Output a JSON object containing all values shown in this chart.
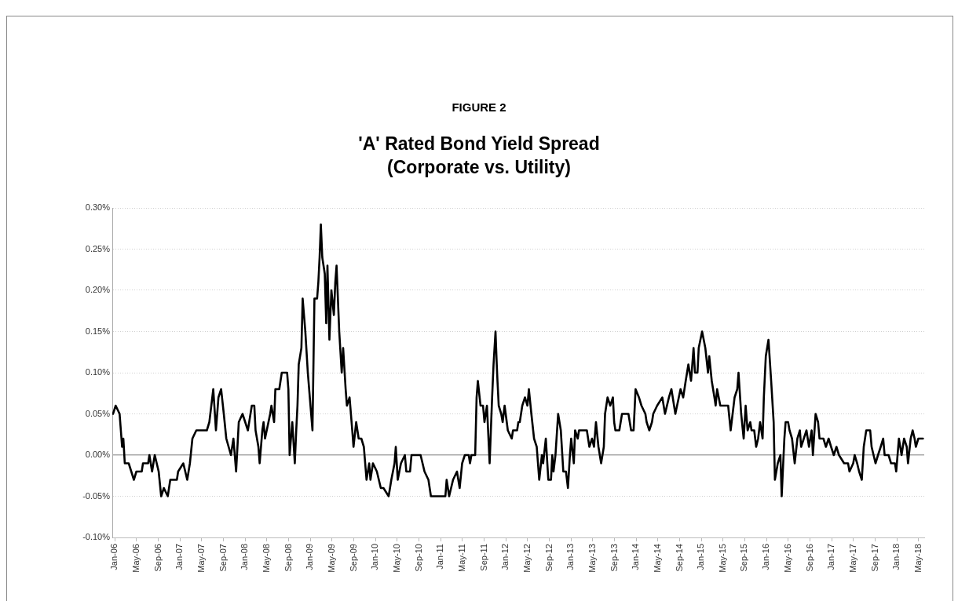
{
  "chart_data": {
    "type": "line",
    "title": "'A' Rated Bond Yield Spread\n(Corporate vs. Utility)",
    "annotations": [
      "FIGURE 2"
    ],
    "x": [
      "2005-12-21",
      "2006-01-05",
      "2006-01-27",
      "2006-02-10",
      "2006-02-17",
      "2006-02-25",
      "2006-03-19",
      "2006-04-17",
      "2006-05-01",
      "2006-05-31",
      "2006-06-07",
      "2006-07-06",
      "2006-07-13",
      "2006-07-28",
      "2006-08-12",
      "2006-09-03",
      "2006-09-17",
      "2006-10-02",
      "2006-10-24",
      "2006-11-07",
      "2006-12-14",
      "2006-12-21",
      "2007-01-19",
      "2007-02-10",
      "2007-02-25",
      "2007-03-11",
      "2007-04-02",
      "2007-05-31",
      "2007-06-14",
      "2007-07-06",
      "2007-07-21",
      "2007-08-04",
      "2007-08-19",
      "2007-09-03",
      "2007-09-17",
      "2007-10-13",
      "2007-10-27",
      "2007-11-11",
      "2007-11-26",
      "2007-12-17",
      "2008-01-16",
      "2008-02-07",
      "2008-02-21",
      "2008-02-28",
      "2008-03-15",
      "2008-03-22",
      "2008-04-06",
      "2008-04-13",
      "2008-04-21",
      "2008-05-20",
      "2008-05-27",
      "2008-06-11",
      "2008-06-18",
      "2008-07-10",
      "2008-07-24",
      "2008-08-23",
      "2008-08-30",
      "2008-09-06",
      "2008-09-21",
      "2008-10-05",
      "2008-10-13",
      "2008-10-20",
      "2008-10-27",
      "2008-11-11",
      "2008-11-18",
      "2008-12-03",
      "2008-12-17",
      "2009-01-12",
      "2009-01-23",
      "2009-02-07",
      "2009-02-14",
      "2009-02-21",
      "2009-02-28",
      "2009-03-08",
      "2009-03-22",
      "2009-03-30",
      "2009-04-06",
      "2009-04-17",
      "2009-04-28",
      "2009-05-12",
      "2009-05-20",
      "2009-05-27",
      "2009-06-11",
      "2009-06-25",
      "2009-07-03",
      "2009-07-17",
      "2009-07-24",
      "2009-08-08",
      "2009-08-23",
      "2009-08-30",
      "2009-09-14",
      "2009-09-28",
      "2009-10-13",
      "2009-10-27",
      "2009-11-11",
      "2009-11-26",
      "2009-12-03",
      "2009-12-17",
      "2010-01-08",
      "2010-01-30",
      "2010-02-14",
      "2010-03-15",
      "2010-03-30",
      "2010-04-17",
      "2010-04-24",
      "2010-05-05",
      "2010-05-23",
      "2010-06-14",
      "2010-06-22",
      "2010-07-13",
      "2010-07-21",
      "2010-09-10",
      "2010-10-02",
      "2010-10-24",
      "2010-11-07",
      "2011-01-27",
      "2011-02-03",
      "2011-02-17",
      "2011-03-11",
      "2011-04-02",
      "2011-04-17",
      "2011-05-01",
      "2011-05-16",
      "2011-06-07",
      "2011-06-14",
      "2011-06-22",
      "2011-07-13",
      "2011-07-21",
      "2011-07-28",
      "2011-08-12",
      "2011-08-26",
      "2011-09-03",
      "2011-09-17",
      "2011-10-02",
      "2011-10-09",
      "2011-10-16",
      "2011-10-24",
      "2011-11-04",
      "2011-11-11",
      "2011-11-15",
      "2011-11-22",
      "2011-12-06",
      "2011-12-14",
      "2011-12-25",
      "2012-01-12",
      "2012-02-03",
      "2012-02-10",
      "2012-03-04",
      "2012-03-11",
      "2012-03-19",
      "2012-04-02",
      "2012-04-17",
      "2012-05-01",
      "2012-05-09",
      "2012-05-23",
      "2012-06-07",
      "2012-06-22",
      "2012-07-06",
      "2012-07-21",
      "2012-07-28",
      "2012-08-12",
      "2012-08-26",
      "2012-09-10",
      "2012-09-17",
      "2012-09-24",
      "2012-10-05",
      "2012-10-20",
      "2012-11-04",
      "2012-11-18",
      "2012-12-03",
      "2012-12-14",
      "2012-12-25",
      "2013-01-01",
      "2013-01-16",
      "2013-01-23",
      "2013-02-07",
      "2013-02-14",
      "2013-03-30",
      "2013-04-13",
      "2013-04-28",
      "2013-05-09",
      "2013-05-20",
      "2013-06-03",
      "2013-06-18",
      "2013-07-03",
      "2013-07-10",
      "2013-07-24",
      "2013-08-08",
      "2013-08-23",
      "2013-08-30",
      "2013-09-06",
      "2013-09-28",
      "2013-10-13",
      "2013-11-18",
      "2013-12-03",
      "2013-12-17",
      "2013-12-28",
      "2014-01-16",
      "2014-01-30",
      "2014-02-21",
      "2014-02-28",
      "2014-03-15",
      "2014-03-30",
      "2014-04-06",
      "2014-04-28",
      "2014-05-27",
      "2014-06-11",
      "2014-07-03",
      "2014-07-17",
      "2014-08-08",
      "2014-09-06",
      "2014-09-21",
      "2014-10-05",
      "2014-10-20",
      "2014-11-04",
      "2014-11-18",
      "2014-11-26",
      "2014-12-10",
      "2014-12-17",
      "2015-01-05",
      "2015-01-23",
      "2015-02-07",
      "2015-02-14",
      "2015-02-28",
      "2015-03-15",
      "2015-03-22",
      "2015-03-30",
      "2015-04-17",
      "2015-05-31",
      "2015-06-14",
      "2015-07-06",
      "2015-07-21",
      "2015-07-28",
      "2015-08-12",
      "2015-08-26",
      "2015-09-06",
      "2015-09-17",
      "2015-10-02",
      "2015-10-09",
      "2015-10-24",
      "2015-11-04",
      "2015-11-15",
      "2015-11-26",
      "2015-12-10",
      "2015-12-17",
      "2015-12-28",
      "2016-01-12",
      "2016-01-27",
      "2016-02-10",
      "2016-02-17",
      "2016-03-04",
      "2016-03-19",
      "2016-03-26",
      "2016-04-10",
      "2016-04-17",
      "2016-05-01",
      "2016-05-09",
      "2016-05-23",
      "2016-06-07",
      "2016-06-22",
      "2016-07-06",
      "2016-07-13",
      "2016-07-28",
      "2016-08-12",
      "2016-08-26",
      "2016-09-10",
      "2016-09-17",
      "2016-10-02",
      "2016-10-16",
      "2016-10-24",
      "2016-11-15",
      "2016-11-29",
      "2016-12-14",
      "2016-12-28",
      "2017-01-12",
      "2017-01-27",
      "2017-02-10",
      "2017-03-11",
      "2017-04-02",
      "2017-04-10",
      "2017-05-01",
      "2017-05-09",
      "2017-05-23",
      "2017-06-03",
      "2017-06-18",
      "2017-06-29",
      "2017-07-13",
      "2017-08-04",
      "2017-08-12",
      "2017-09-03",
      "2017-09-17",
      "2017-10-02",
      "2017-10-16",
      "2017-10-24",
      "2017-11-15",
      "2017-11-29",
      "2017-12-21",
      "2017-12-28",
      "2018-01-12",
      "2018-01-27",
      "2018-02-10",
      "2018-02-25",
      "2018-03-04",
      "2018-03-19",
      "2018-03-30",
      "2018-04-10",
      "2018-04-17",
      "2018-05-01",
      "2018-05-27"
    ],
    "series": [
      {
        "color": "#000000",
        "values": [
          0.05,
          0.06,
          0.05,
          0.01,
          0.02,
          -0.01,
          -0.01,
          -0.03,
          -0.02,
          -0.02,
          -0.01,
          -0.01,
          0,
          -0.02,
          0,
          -0.02,
          -0.05,
          -0.04,
          -0.05,
          -0.03,
          -0.03,
          -0.02,
          -0.01,
          -0.03,
          -0.01,
          0.02,
          0.03,
          0.03,
          0.04,
          0.08,
          0.03,
          0.07,
          0.08,
          0.05,
          0.02,
          0,
          0.02,
          -0.02,
          0.04,
          0.05,
          0.03,
          0.06,
          0.06,
          0.03,
          0.01,
          -0.01,
          0.03,
          0.04,
          0.02,
          0.05,
          0.06,
          0.04,
          0.08,
          0.08,
          0.1,
          0.1,
          0.08,
          0,
          0.04,
          -0.01,
          0.03,
          0.06,
          0.11,
          0.13,
          0.19,
          0.15,
          0.1,
          0.03,
          0.19,
          0.19,
          0.21,
          0.24,
          0.28,
          0.24,
          0.22,
          0.16,
          0.23,
          0.14,
          0.2,
          0.17,
          0.21,
          0.23,
          0.15,
          0.1,
          0.13,
          0.08,
          0.06,
          0.07,
          0.03,
          0.01,
          0.04,
          0.02,
          0.02,
          0.01,
          -0.03,
          -0.01,
          -0.03,
          -0.01,
          -0.02,
          -0.04,
          -0.04,
          -0.05,
          -0.03,
          -0.01,
          0.01,
          -0.03,
          -0.01,
          0,
          -0.02,
          -0.02,
          0,
          0,
          -0.02,
          -0.03,
          -0.05,
          -0.05,
          -0.03,
          -0.05,
          -0.03,
          -0.02,
          -0.04,
          -0.01,
          0,
          0,
          -0.01,
          0,
          0,
          0.07,
          0.09,
          0.06,
          0.06,
          0.04,
          0.06,
          -0.01,
          0.03,
          0.07,
          0.11,
          0.15,
          0.11,
          0.09,
          0.06,
          0.05,
          0.04,
          0.06,
          0.03,
          0.02,
          0.03,
          0.03,
          0.04,
          0.04,
          0.06,
          0.07,
          0.06,
          0.08,
          0.05,
          0.02,
          0.01,
          -0.03,
          0,
          -0.01,
          0.02,
          -0.03,
          -0.03,
          0,
          -0.02,
          0,
          0.05,
          0.03,
          -0.02,
          -0.02,
          -0.04,
          0,
          0.02,
          -0.01,
          0.03,
          0.02,
          0.03,
          0.03,
          0.01,
          0.02,
          0.01,
          0.04,
          0.01,
          -0.01,
          0.01,
          0.05,
          0.07,
          0.06,
          0.07,
          0.04,
          0.03,
          0.03,
          0.05,
          0.05,
          0.03,
          0.03,
          0.08,
          0.07,
          0.06,
          0.05,
          0.04,
          0.03,
          0.04,
          0.05,
          0.06,
          0.07,
          0.05,
          0.07,
          0.08,
          0.05,
          0.08,
          0.07,
          0.09,
          0.11,
          0.09,
          0.13,
          0.1,
          0.1,
          0.13,
          0.15,
          0.13,
          0.1,
          0.12,
          0.09,
          0.07,
          0.06,
          0.08,
          0.06,
          0.06,
          0.03,
          0.07,
          0.08,
          0.1,
          0.05,
          0.02,
          0.06,
          0.03,
          0.04,
          0.03,
          0.03,
          0.01,
          0.02,
          0.04,
          0.02,
          0.07,
          0.12,
          0.14,
          0.09,
          0.04,
          -0.03,
          -0.01,
          0,
          -0.05,
          0.02,
          0.04,
          0.04,
          0.03,
          0.02,
          -0.01,
          0.02,
          0.03,
          0.01,
          0.02,
          0.03,
          0.01,
          0.03,
          0,
          0.05,
          0.04,
          0.02,
          0.02,
          0.01,
          0.02,
          0.01,
          0,
          0.01,
          0,
          -0.01,
          -0.01,
          -0.02,
          -0.01,
          0,
          -0.01,
          -0.02,
          -0.03,
          0.01,
          0.03,
          0.03,
          0.01,
          -0.01,
          0,
          0.01,
          0.02,
          0,
          0,
          -0.01,
          -0.01,
          -0.02,
          0.02,
          0,
          0.02,
          0.01,
          -0.01,
          0.02,
          0.03,
          0.02,
          0.01,
          0.02,
          0.02
        ]
      }
    ],
    "xlim": [
      "2005-12-17",
      "2018-06-03"
    ],
    "xticks": [
      {
        "value": "2006-01",
        "label": "Jan-06"
      },
      {
        "value": "2006-05",
        "label": "May-06"
      },
      {
        "value": "2006-09",
        "label": "Sep-06"
      },
      {
        "value": "2007-01",
        "label": "Jan-07"
      },
      {
        "value": "2007-05",
        "label": "May-07"
      },
      {
        "value": "2007-09",
        "label": "Sep-07"
      },
      {
        "value": "2008-01",
        "label": "Jan-08"
      },
      {
        "value": "2008-05",
        "label": "May-08"
      },
      {
        "value": "2008-09",
        "label": "Sep-08"
      },
      {
        "value": "2009-01",
        "label": "Jan-09"
      },
      {
        "value": "2009-05",
        "label": "May-09"
      },
      {
        "value": "2009-09",
        "label": "Sep-09"
      },
      {
        "value": "2010-01",
        "label": "Jan-10"
      },
      {
        "value": "2010-05",
        "label": "May-10"
      },
      {
        "value": "2010-09",
        "label": "Sep-10"
      },
      {
        "value": "2011-01",
        "label": "Jan-11"
      },
      {
        "value": "2011-05",
        "label": "May-11"
      },
      {
        "value": "2011-09",
        "label": "Sep-11"
      },
      {
        "value": "2012-01",
        "label": "Jan-12"
      },
      {
        "value": "2012-05",
        "label": "May-12"
      },
      {
        "value": "2012-09",
        "label": "Sep-12"
      },
      {
        "value": "2013-01",
        "label": "Jan-13"
      },
      {
        "value": "2013-05",
        "label": "May-13"
      },
      {
        "value": "2013-09",
        "label": "Sep-13"
      },
      {
        "value": "2014-01",
        "label": "Jan-14"
      },
      {
        "value": "2014-05",
        "label": "May-14"
      },
      {
        "value": "2014-09",
        "label": "Sep-14"
      },
      {
        "value": "2015-01",
        "label": "Jan-15"
      },
      {
        "value": "2015-05",
        "label": "May-15"
      },
      {
        "value": "2015-09",
        "label": "Sep-15"
      },
      {
        "value": "2016-01",
        "label": "Jan-16"
      },
      {
        "value": "2016-05",
        "label": "May-16"
      },
      {
        "value": "2016-09",
        "label": "Sep-16"
      },
      {
        "value": "2017-01",
        "label": "Jan-17"
      },
      {
        "value": "2017-05",
        "label": "May-17"
      },
      {
        "value": "2017-09",
        "label": "Sep-17"
      },
      {
        "value": "2018-01",
        "label": "Jan-18"
      },
      {
        "value": "2018-05",
        "label": "May-18"
      }
    ],
    "ylim": [
      -0.1,
      0.3
    ],
    "yticks": [
      {
        "value": -0.1,
        "label": "-0.10%"
      },
      {
        "value": -0.05,
        "label": "-0.05%"
      },
      {
        "value": 0,
        "label": "0.00%"
      },
      {
        "value": 0.05,
        "label": "0.05%"
      },
      {
        "value": 0.1,
        "label": "0.10%"
      },
      {
        "value": 0.15,
        "label": "0.15%"
      },
      {
        "value": 0.2,
        "label": "0.20%"
      },
      {
        "value": 0.25,
        "label": "0.25%"
      },
      {
        "value": 0.3,
        "label": "0.30%"
      }
    ],
    "grid": "y",
    "legend": false,
    "marker": "none",
    "line_style": "solid"
  }
}
